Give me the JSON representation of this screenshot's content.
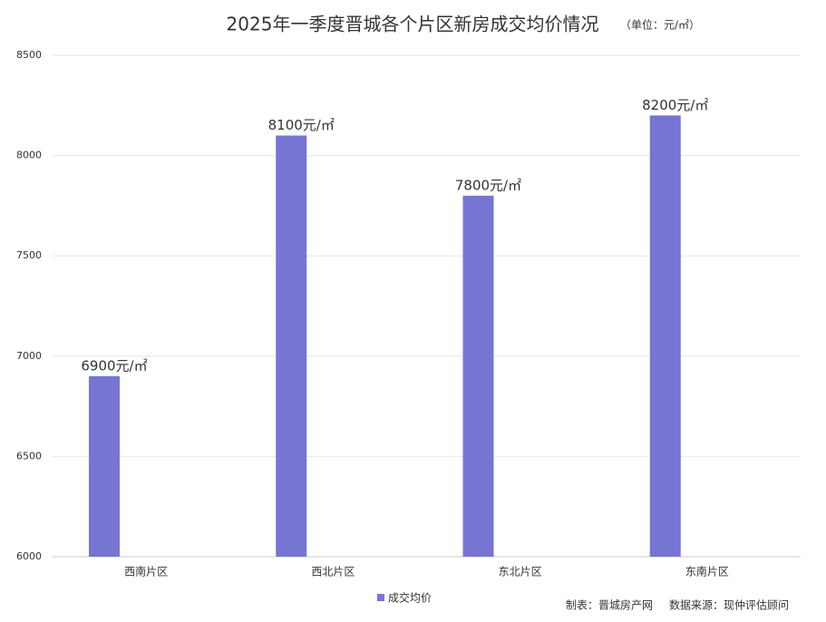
{
  "chart_data": {
    "type": "bar",
    "title": "2025年一季度晋城各个片区新房成交均价情况",
    "subtitle": "（单位：元/㎡）",
    "categories": [
      "西南片区",
      "西北片区",
      "东北片区",
      "东南片区"
    ],
    "series": [
      {
        "name": "成交均价",
        "color": "#7675d3",
        "values": [
          6900,
          8100,
          7800,
          8200
        ],
        "value_labels": [
          "6900元/㎡",
          "8100元/㎡",
          "7800元/㎡",
          "8200元/㎡"
        ]
      }
    ],
    "ylim": [
      6000,
      8500
    ],
    "yticks": [
      6000,
      6500,
      7000,
      7500,
      8000,
      8500
    ],
    "grid": true,
    "legend": "bottom",
    "footer": {
      "maker": "制表：晋城房产网",
      "source": "数据来源：现仲评估顾问"
    }
  }
}
